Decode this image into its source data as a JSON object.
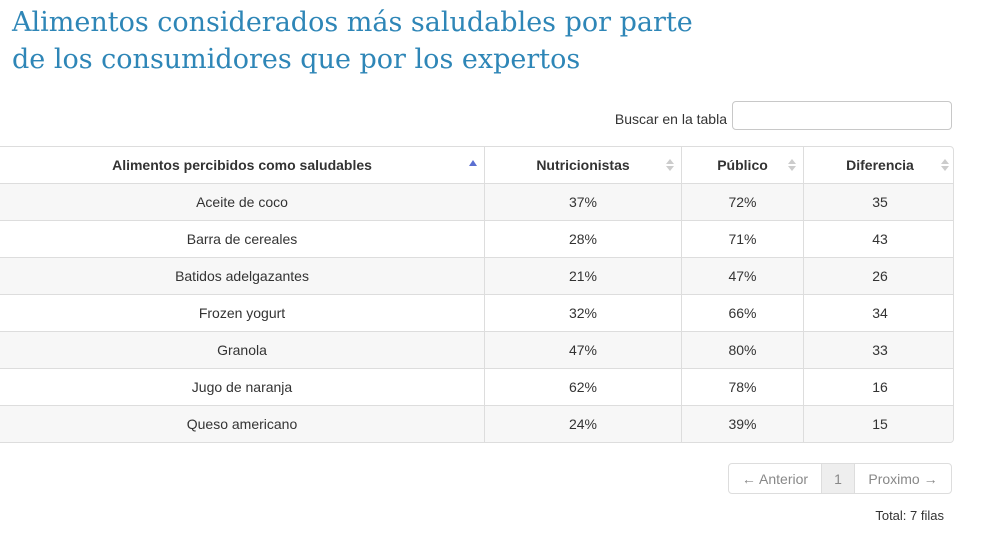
{
  "title": "Alimentos considerados más saludables por parte de los consumidores que por los expertos",
  "search": {
    "label": "Buscar en la tabla",
    "value": ""
  },
  "table": {
    "headers": [
      "Alimentos percibidos como saludables",
      "Nutricionistas",
      "Público",
      "Diferencia"
    ],
    "sorted_column": 0,
    "sort_direction": "ascending",
    "rows": [
      [
        "Aceite de coco",
        "37%",
        "72%",
        "35"
      ],
      [
        "Barra de cereales",
        "28%",
        "71%",
        "43"
      ],
      [
        "Batidos adelgazantes",
        "21%",
        "47%",
        "26"
      ],
      [
        "Frozen yogurt",
        "32%",
        "66%",
        "34"
      ],
      [
        "Granola",
        "47%",
        "80%",
        "33"
      ],
      [
        "Jugo de naranja",
        "62%",
        "78%",
        "16"
      ],
      [
        "Queso americano",
        "24%",
        "39%",
        "15"
      ]
    ]
  },
  "pager": {
    "prev": "← Anterior",
    "page": "1",
    "next": "Proximo →"
  },
  "total": "Total: 7 filas",
  "colors": {
    "title": "#2e86b7",
    "sort_active": "#5b6fd1",
    "sort_inactive": "#cccccc",
    "stripe": "#f7f7f7"
  }
}
